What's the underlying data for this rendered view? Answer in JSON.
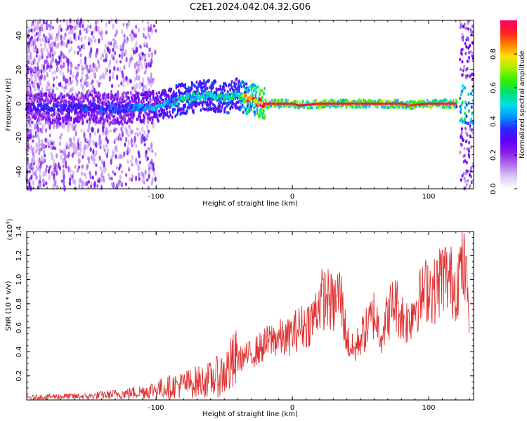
{
  "title": "C2E1.2024.042.04.32.G06",
  "chart_data": [
    {
      "type": "heatmap",
      "name": "spectrogram",
      "xlabel": "Height of straight line (km)",
      "ylabel": "Frequency (Hz)",
      "xlim": [
        -195,
        133
      ],
      "ylim": [
        -50,
        49
      ],
      "xticks": [
        -100,
        0,
        100
      ],
      "xtick_labels": [
        "-100",
        "0",
        "100"
      ],
      "yticks": [
        -40,
        -20,
        0,
        20,
        40
      ],
      "ytick_labels": [
        "-40",
        "-20",
        "0",
        "20",
        "40"
      ],
      "ridge": {
        "description": "frequency of peak spectral amplitude vs height",
        "x": [
          -195,
          -170,
          -150,
          -130,
          -110,
          -95,
          -80,
          -70,
          -60,
          -50,
          -45,
          -40,
          -35,
          -30,
          -25,
          -20,
          0,
          5,
          20,
          40,
          60,
          80,
          85,
          100,
          120,
          122
        ],
        "y": [
          -2,
          -3,
          -2,
          -3,
          -2,
          -1,
          3,
          4,
          5,
          3,
          4,
          6,
          3,
          3,
          1,
          0,
          0,
          -1,
          0,
          0,
          0,
          0,
          -1,
          0,
          0,
          -3
        ],
        "amplitude": [
          0.3,
          0.35,
          0.35,
          0.35,
          0.4,
          0.45,
          0.5,
          0.5,
          0.5,
          0.5,
          0.55,
          0.45,
          0.75,
          0.8,
          0.9,
          0.95,
          0.95,
          0.95,
          0.95,
          0.95,
          0.95,
          0.95,
          0.9,
          0.95,
          0.95,
          0.5
        ]
      },
      "colorbar": {
        "label": "Normalized spectral amplitude",
        "range": [
          0,
          1
        ],
        "ticks": [
          0.0,
          0.2,
          0.4,
          0.6,
          0.8
        ],
        "tick_labels": [
          "0.0",
          "0.2",
          "0.4",
          "0.6",
          "0.8"
        ],
        "colors": [
          "#ffffff",
          "#dcc8f5",
          "#b070f0",
          "#8a1ee6",
          "#5a00ff",
          "#2a28ff",
          "#0098ff",
          "#00e0e6",
          "#00e070",
          "#30f000",
          "#a0f000",
          "#ffe000",
          "#ff8000",
          "#ff2020",
          "#ff0068"
        ]
      }
    },
    {
      "type": "line",
      "name": "snr",
      "xlabel": "Height of straight line (km)",
      "ylabel": "SNR (10 * v/v)",
      "exponent_prefix": "(x10",
      "exponent_power": "4",
      "exponent_suffix": ")",
      "xlim": [
        -195,
        133
      ],
      "ylim": [
        0,
        1.4
      ],
      "xticks": [
        -100,
        0,
        100
      ],
      "xtick_labels": [
        "-100",
        "0",
        "100"
      ],
      "yticks": [
        0.2,
        0.4,
        0.6,
        0.8,
        1.0,
        1.2,
        1.4
      ],
      "ytick_labels": [
        "0.2",
        "0.4",
        "0.6",
        "0.8",
        "1.0",
        "1.2",
        "1.4"
      ],
      "color": "#e03030",
      "series": [
        {
          "name": "SNR",
          "x": [
            -195,
            -170,
            -150,
            -140,
            -125,
            -110,
            -100,
            -90,
            -80,
            -70,
            -60,
            -50,
            -45,
            -40,
            -35,
            -30,
            -25,
            -20,
            -15,
            -10,
            -5,
            0,
            5,
            10,
            15,
            20,
            25,
            30,
            35,
            40,
            45,
            50,
            55,
            60,
            65,
            70,
            75,
            80,
            85,
            90,
            95,
            100,
            105,
            110,
            115,
            120,
            125,
            130
          ],
          "y": [
            0.02,
            0.03,
            0.03,
            0.04,
            0.05,
            0.07,
            0.09,
            0.11,
            0.13,
            0.15,
            0.17,
            0.22,
            0.28,
            0.33,
            0.36,
            0.38,
            0.42,
            0.46,
            0.5,
            0.52,
            0.5,
            0.55,
            0.6,
            0.62,
            0.68,
            0.82,
            0.86,
            0.78,
            0.9,
            0.5,
            0.4,
            0.52,
            0.6,
            0.72,
            0.55,
            0.7,
            0.82,
            0.7,
            0.65,
            0.8,
            0.85,
            0.95,
            0.9,
            1.05,
            1.0,
            0.95,
            1.15,
            0.8
          ]
        }
      ]
    }
  ]
}
